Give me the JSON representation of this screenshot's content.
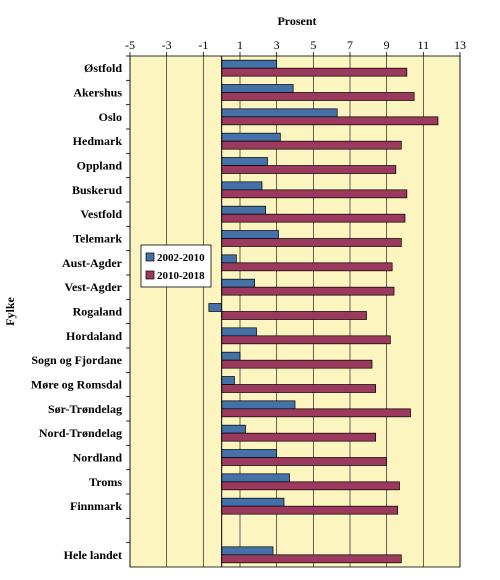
{
  "chart_data": {
    "type": "bar",
    "orientation": "horizontal",
    "xlabel": "Prosent",
    "ylabel": "Fylke",
    "xlim": [
      -5,
      13
    ],
    "xticks": [
      -5,
      -3,
      -1,
      1,
      3,
      5,
      7,
      9,
      11,
      13
    ],
    "grid": "vertical",
    "legend_position": "middle-left",
    "categories": [
      "Østfold",
      "Akershus",
      "Oslo",
      "Hedmark",
      "Oppland",
      "Buskerud",
      "Vestfold",
      "Telemark",
      "Aust-Agder",
      "Vest-Agder",
      "Rogaland",
      "Hordaland",
      "Sogn og Fjordane",
      "Møre og Romsdal",
      "Sør-Trøndelag",
      "Nord-Trøndelag",
      "Nordland",
      "Troms",
      "Finnmark",
      "",
      "Hele landet"
    ],
    "series": [
      {
        "name": "2002-2010",
        "color": "#4472a8",
        "values": [
          3.0,
          3.9,
          6.3,
          3.2,
          2.5,
          2.2,
          2.4,
          3.1,
          0.8,
          1.8,
          -0.7,
          1.9,
          1.0,
          0.7,
          4.0,
          1.3,
          3.0,
          3.7,
          3.4,
          null,
          2.8
        ]
      },
      {
        "name": "2010-2018",
        "color": "#9b3a5e",
        "values": [
          10.1,
          10.5,
          11.8,
          9.8,
          9.5,
          10.1,
          10.0,
          9.8,
          9.3,
          9.4,
          7.9,
          9.2,
          8.2,
          8.4,
          10.3,
          8.4,
          9.0,
          9.7,
          9.6,
          null,
          9.8
        ]
      }
    ]
  }
}
